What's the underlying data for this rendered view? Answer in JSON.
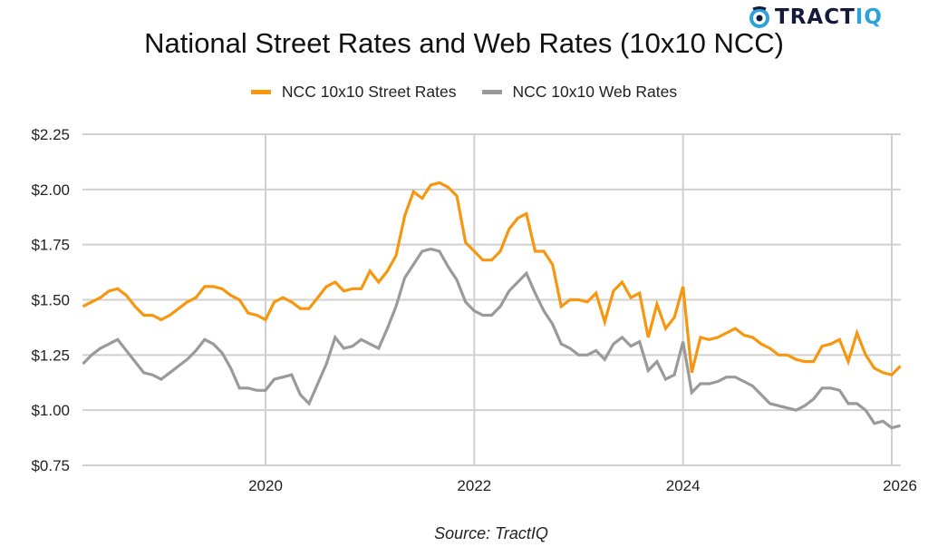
{
  "logo": {
    "brand_main": "TRACT",
    "brand_accent": "IQ",
    "icon": "tractiq-logo-icon",
    "accent_color": "#2aa3dd",
    "dark_color": "#15193a"
  },
  "source": "Source: TractIQ",
  "chart_data": {
    "type": "line",
    "title": "National Street Rates and Web Rates (10x10 NCC)",
    "xlabel": "",
    "ylabel": "",
    "legend_position": "top-center",
    "grid": true,
    "ylim": [
      0.75,
      2.25
    ],
    "yticks": [
      2.25,
      2.0,
      1.75,
      1.5,
      1.25,
      1.0,
      0.75
    ],
    "ytick_labels": [
      "$2.25",
      "$2.00",
      "$1.75",
      "$1.50",
      "$1.25",
      "$1.00",
      "$0.75"
    ],
    "xticks": [
      "2020",
      "2022",
      "2024",
      "2026"
    ],
    "x_start": "2018-04",
    "x_interval": "monthly",
    "series": [
      {
        "name": "NCC 10x10 Street Rates",
        "color": "#f7960f",
        "values": [
          1.47,
          1.49,
          1.51,
          1.54,
          1.55,
          1.52,
          1.47,
          1.43,
          1.43,
          1.41,
          1.43,
          1.46,
          1.49,
          1.51,
          1.56,
          1.56,
          1.55,
          1.52,
          1.5,
          1.44,
          1.43,
          1.41,
          1.49,
          1.51,
          1.49,
          1.46,
          1.46,
          1.51,
          1.56,
          1.58,
          1.54,
          1.55,
          1.55,
          1.63,
          1.58,
          1.63,
          1.7,
          1.88,
          1.99,
          1.96,
          2.02,
          2.03,
          2.01,
          1.97,
          1.76,
          1.72,
          1.68,
          1.68,
          1.72,
          1.82,
          1.87,
          1.89,
          1.72,
          1.72,
          1.66,
          1.47,
          1.5,
          1.5,
          1.49,
          1.53,
          1.4,
          1.54,
          1.58,
          1.51,
          1.53,
          1.33,
          1.48,
          1.37,
          1.42,
          1.56,
          1.17,
          1.33,
          1.32,
          1.33,
          1.35,
          1.37,
          1.34,
          1.33,
          1.3,
          1.28,
          1.25,
          1.25,
          1.23,
          1.22,
          1.22,
          1.29,
          1.3,
          1.32,
          1.22,
          1.35,
          1.25,
          1.19,
          1.17,
          1.16,
          1.2
        ]
      },
      {
        "name": "NCC 10x10 Web Rates",
        "color": "#9a9a9a",
        "values": [
          1.21,
          1.25,
          1.28,
          1.3,
          1.32,
          1.27,
          1.22,
          1.17,
          1.16,
          1.14,
          1.17,
          1.2,
          1.23,
          1.27,
          1.32,
          1.3,
          1.26,
          1.19,
          1.1,
          1.1,
          1.09,
          1.09,
          1.14,
          1.15,
          1.16,
          1.07,
          1.03,
          1.12,
          1.21,
          1.33,
          1.28,
          1.29,
          1.32,
          1.3,
          1.28,
          1.37,
          1.47,
          1.6,
          1.66,
          1.72,
          1.73,
          1.72,
          1.65,
          1.59,
          1.49,
          1.45,
          1.43,
          1.43,
          1.47,
          1.54,
          1.58,
          1.62,
          1.53,
          1.45,
          1.39,
          1.3,
          1.28,
          1.25,
          1.25,
          1.27,
          1.23,
          1.3,
          1.33,
          1.29,
          1.31,
          1.18,
          1.22,
          1.14,
          1.16,
          1.31,
          1.08,
          1.12,
          1.12,
          1.13,
          1.15,
          1.15,
          1.13,
          1.11,
          1.07,
          1.03,
          1.02,
          1.01,
          1.0,
          1.02,
          1.05,
          1.1,
          1.1,
          1.09,
          1.03,
          1.03,
          1.0,
          0.94,
          0.95,
          0.92,
          0.93
        ]
      }
    ]
  }
}
